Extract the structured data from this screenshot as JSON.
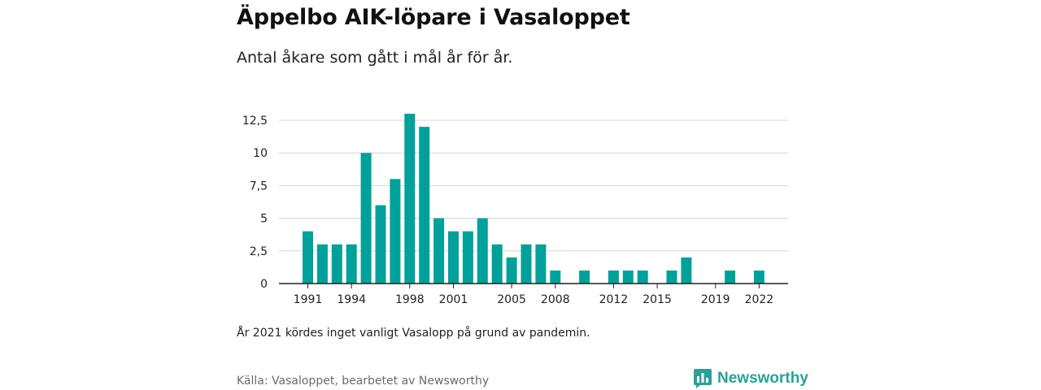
{
  "title": "Äppelbo AIK-löpare i Vasaloppet",
  "subtitle": "Antal åkare som gått i mål år för år.",
  "note": "År 2021 kördes inget vanligt Vasalopp på grund av pandemin.",
  "source": "Källa: Vasaloppet, bearbetet av Newsworthy",
  "brand": {
    "name": "Newsworthy",
    "icon": "newsworthy-logo-icon",
    "color": "#2aa198"
  },
  "chart_data": {
    "type": "bar",
    "bar_color": "#00a19a",
    "x": [
      1991,
      1992,
      1993,
      1994,
      1995,
      1996,
      1997,
      1998,
      1999,
      2000,
      2001,
      2002,
      2003,
      2004,
      2005,
      2006,
      2007,
      2008,
      2009,
      2010,
      2011,
      2012,
      2013,
      2014,
      2015,
      2016,
      2017,
      2018,
      2019,
      2020,
      2021,
      2022
    ],
    "values": [
      4,
      3,
      3,
      3,
      10,
      6,
      8,
      13,
      12,
      5,
      4,
      4,
      5,
      3,
      2,
      3,
      3,
      1,
      0,
      1,
      0,
      1,
      1,
      1,
      0,
      1,
      2,
      0,
      0,
      1,
      0,
      1
    ],
    "x_tick_values": [
      1991,
      1994,
      1998,
      2001,
      2005,
      2008,
      2012,
      2015,
      2019,
      2022
    ],
    "x_tick_labels": [
      "1991",
      "1994",
      "1998",
      "2001",
      "2005",
      "2008",
      "2012",
      "2015",
      "2019",
      "2022"
    ],
    "y_tick_values": [
      0,
      2.5,
      5,
      7.5,
      10,
      12.5
    ],
    "y_tick_labels": [
      "0",
      "2,5",
      "5",
      "7,5",
      "10",
      "12,5"
    ],
    "ylim": [
      0,
      13
    ],
    "xlabel": "",
    "ylabel": "",
    "grid": true
  }
}
